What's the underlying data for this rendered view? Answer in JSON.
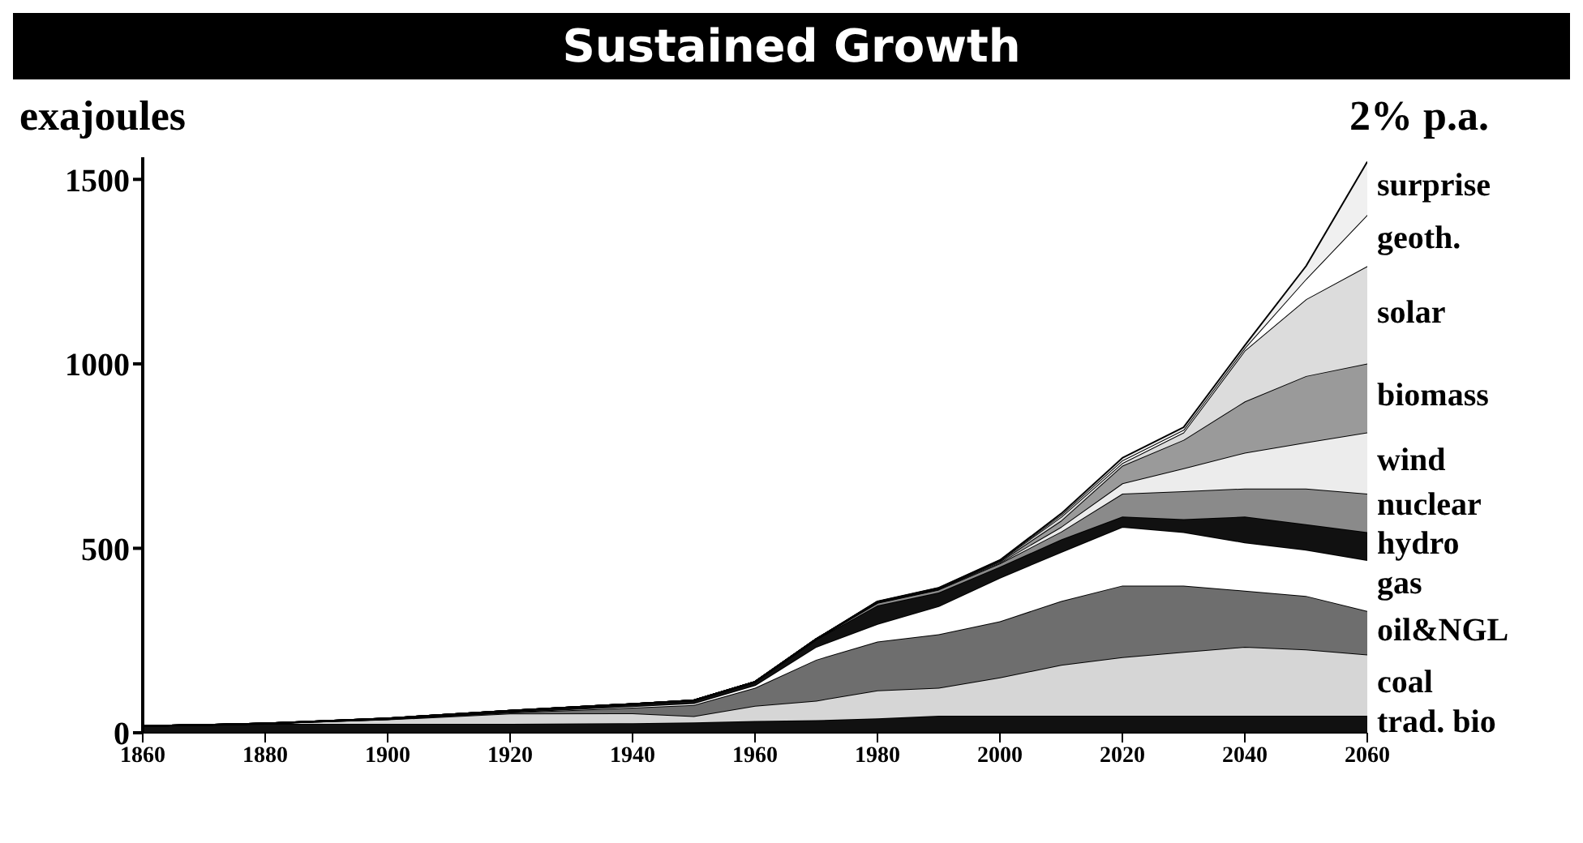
{
  "chart_data": {
    "type": "area",
    "title": "Sustained Growth",
    "subtitle": "2% p.a.",
    "ylabel": "exajoules",
    "stacked": true,
    "x": [
      1860,
      1880,
      1900,
      1920,
      1940,
      1950,
      1960,
      1970,
      1980,
      1990,
      2000,
      2010,
      2020,
      2030,
      2040,
      2050,
      2060
    ],
    "xlim": [
      1860,
      2060
    ],
    "xticks": [
      1860,
      1880,
      1900,
      1920,
      1940,
      1960,
      1980,
      2000,
      2020,
      2040,
      2060
    ],
    "ylim": [
      0,
      1560
    ],
    "yticks": [
      0,
      500,
      1000,
      1500
    ],
    "series": [
      {
        "name": "trad. bio",
        "color": "#111111",
        "values": [
          18,
          24,
          24,
          24,
          26,
          28,
          32,
          34,
          39,
          46,
          46,
          46,
          46,
          46,
          46,
          46,
          46
        ]
      },
      {
        "name": "coal",
        "color": "#d6d6d6",
        "values": [
          0,
          1,
          12,
          28,
          27,
          17,
          41,
          53,
          76,
          76,
          104,
          138,
          159,
          173,
          187,
          180,
          166
        ]
      },
      {
        "name": "oil&NGL",
        "color": "#6e6e6e",
        "values": [
          0,
          0,
          1,
          3,
          15,
          30,
          49,
          111,
          132,
          145,
          152,
          173,
          194,
          180,
          152,
          145,
          118
        ]
      },
      {
        "name": "gas",
        "color": "#ffffff",
        "values": [
          0,
          0,
          0,
          1,
          4,
          5,
          7,
          35,
          48,
          76,
          118,
          133,
          159,
          145,
          131,
          125,
          138
        ]
      },
      {
        "name": "hydro",
        "color": "#111111",
        "values": [
          0,
          0,
          2,
          4,
          6,
          8,
          9,
          20,
          50,
          37,
          30,
          34,
          28,
          35,
          70,
          69,
          76
        ]
      },
      {
        "name": "nuclear",
        "color": "#8a8a8a",
        "values": [
          0,
          0,
          0,
          0,
          0,
          0,
          0,
          1,
          7,
          8,
          9,
          21,
          62,
          76,
          76,
          97,
          104
        ]
      },
      {
        "name": "wind",
        "color": "#ececec",
        "values": [
          0,
          0,
          0,
          0,
          0,
          0,
          0,
          0,
          1,
          1,
          2,
          13,
          28,
          62,
          97,
          125,
          166
        ]
      },
      {
        "name": "biomass",
        "color": "#9a9a9a",
        "values": [
          0,
          0,
          0,
          0,
          0,
          0,
          0,
          0,
          1,
          1,
          3,
          17,
          48,
          77,
          139,
          180,
          187
        ]
      },
      {
        "name": "solar",
        "color": "#dcdcdc",
        "values": [
          0,
          0,
          0,
          0,
          0,
          0,
          0,
          0,
          1,
          1,
          2,
          10,
          7,
          20,
          138,
          208,
          264
        ]
      },
      {
        "name": "geoth.",
        "color": "#ffffff",
        "values": [
          0,
          0,
          0,
          0,
          0,
          0,
          0,
          0,
          0,
          1,
          1,
          5,
          7,
          7,
          7,
          55,
          139
        ]
      },
      {
        "name": "surprise",
        "color": "#f0f0f0",
        "values": [
          0,
          0,
          0,
          0,
          0,
          0,
          0,
          0,
          1,
          1,
          1,
          4,
          7,
          7,
          7,
          35,
          144
        ]
      }
    ]
  }
}
